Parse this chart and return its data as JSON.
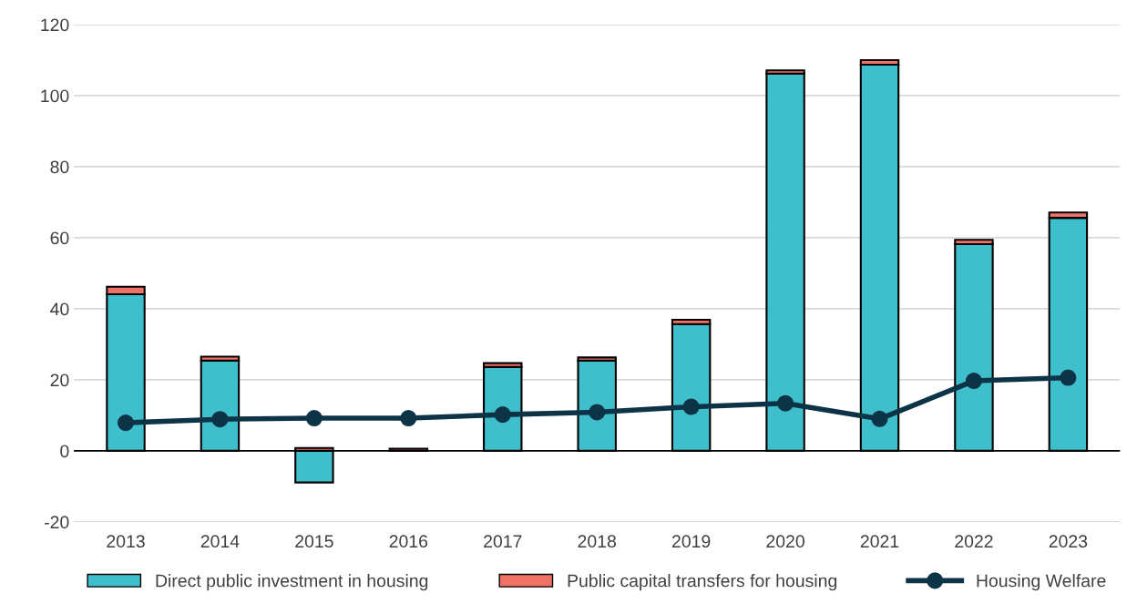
{
  "chart_data": {
    "type": "bar",
    "stacked": true,
    "categories": [
      "2013",
      "2014",
      "2015",
      "2016",
      "2017",
      "2018",
      "2019",
      "2020",
      "2021",
      "2022",
      "2023"
    ],
    "series": [
      {
        "name": "Direct public investment in housing",
        "color": "#3fbecb",
        "values": [
          44.1,
          25.4,
          -8.9,
          null,
          23.6,
          25.4,
          35.7,
          106.2,
          108.7,
          58.2,
          65.6
        ]
      },
      {
        "name": "Public capital transfers for housing",
        "color": "#f07266",
        "values": [
          2.1,
          1.1,
          0.8,
          0.6,
          1.1,
          0.9,
          1.2,
          0.9,
          1.3,
          1.2,
          1.5
        ]
      },
      {
        "name": "Housing Welfare",
        "type": "line",
        "color": "#0d3446",
        "marker": "circle",
        "values": [
          7.9,
          8.9,
          9.2,
          9.2,
          10.2,
          10.9,
          12.4,
          13.4,
          9.0,
          19.7,
          20.6
        ]
      }
    ],
    "ylim": [
      -20,
      120
    ],
    "yticks": [
      -20,
      0,
      20,
      40,
      60,
      80,
      100,
      120
    ],
    "grid": "y",
    "legend": "bottom"
  }
}
